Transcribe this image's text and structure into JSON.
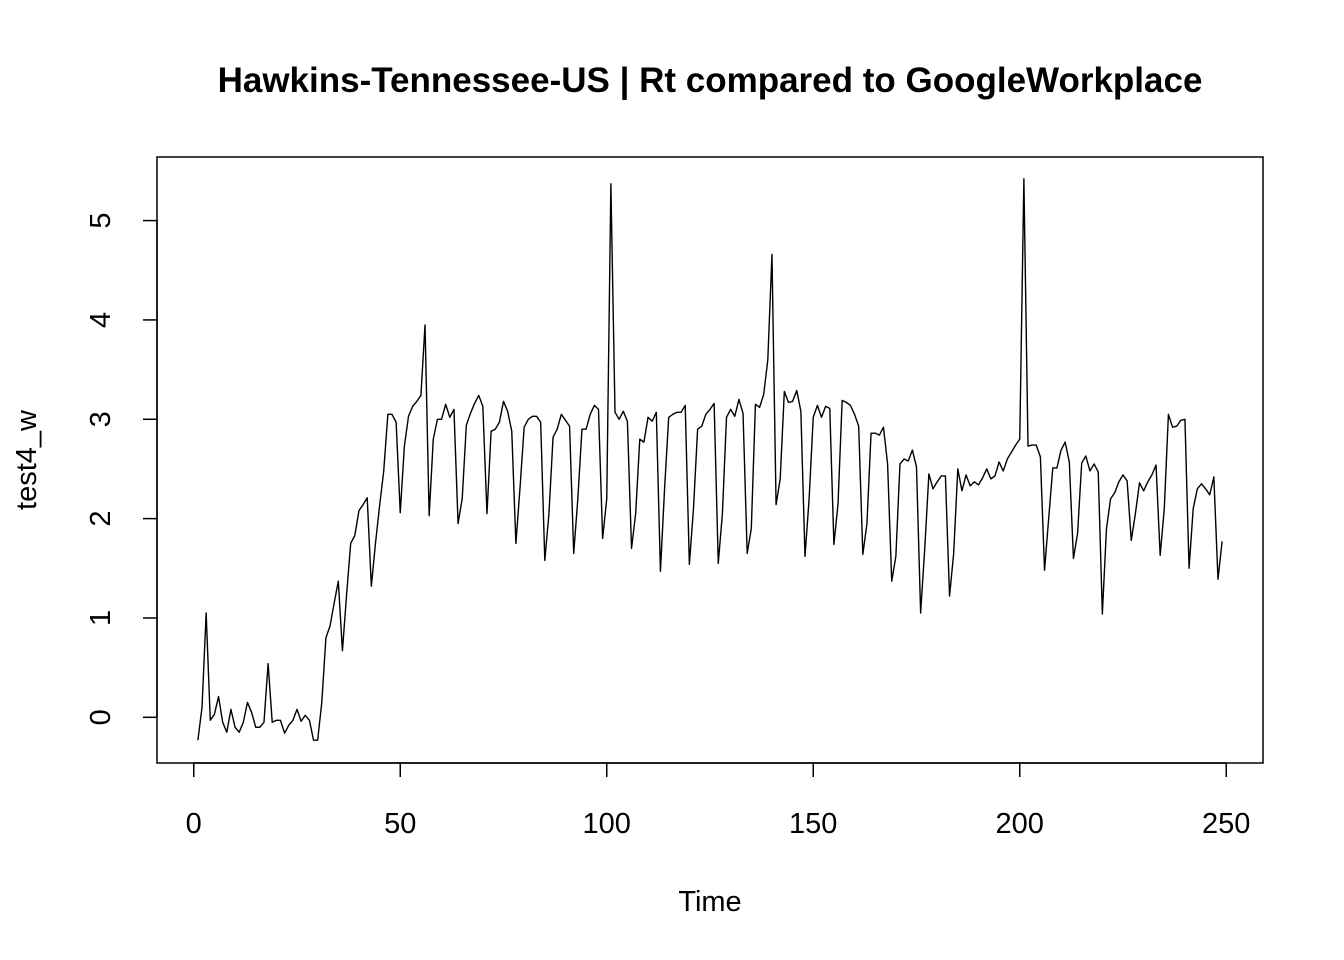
{
  "chart_data": {
    "type": "line",
    "title": "Hawkins-Tennessee-US | Rt compared to GoogleWorkplace",
    "xlabel": "Time",
    "ylabel": "test4_w",
    "xlim": [
      -8.9,
      258.9
    ],
    "ylim": [
      -0.46,
      5.64
    ],
    "x_ticks": [
      0,
      50,
      100,
      150,
      200,
      250
    ],
    "y_ticks": [
      0,
      1,
      2,
      3,
      4,
      5
    ],
    "line_color": "#000000",
    "x_start": 1,
    "series": [
      {
        "values": [
          -0.23,
          0.1,
          1.05,
          -0.03,
          0.03,
          0.21,
          -0.05,
          -0.15,
          0.08,
          -0.1,
          -0.15,
          -0.05,
          0.15,
          0.05,
          -0.1,
          -0.1,
          -0.05,
          0.54,
          -0.05,
          -0.03,
          -0.03,
          -0.16,
          -0.08,
          -0.03,
          0.08,
          -0.04,
          0.02,
          -0.03,
          -0.23,
          -0.23,
          0.15,
          0.8,
          0.92,
          1.15,
          1.37,
          0.67,
          1.23,
          1.75,
          1.83,
          2.08,
          2.14,
          2.21,
          1.32,
          1.75,
          2.13,
          2.48,
          3.05,
          3.05,
          2.97,
          2.06,
          2.73,
          3.03,
          3.13,
          3.18,
          3.24,
          3.95,
          2.03,
          2.8,
          3.0,
          3.0,
          3.15,
          3.02,
          3.1,
          1.95,
          2.2,
          2.94,
          3.06,
          3.16,
          3.24,
          3.13,
          2.05,
          2.88,
          2.9,
          2.97,
          3.18,
          3.08,
          2.88,
          1.75,
          2.31,
          2.92,
          3.0,
          3.03,
          3.03,
          2.97,
          1.58,
          2.05,
          2.82,
          2.9,
          3.05,
          2.99,
          2.93,
          1.65,
          2.2,
          2.9,
          2.9,
          3.05,
          3.14,
          3.1,
          1.8,
          2.2,
          5.37,
          3.07,
          3.0,
          3.08,
          2.98,
          1.7,
          2.05,
          2.8,
          2.77,
          3.02,
          2.98,
          3.07,
          1.47,
          2.3,
          3.02,
          3.05,
          3.07,
          3.07,
          3.14,
          1.54,
          2.1,
          2.9,
          2.93,
          3.05,
          3.1,
          3.16,
          1.55,
          2.05,
          3.02,
          3.1,
          3.03,
          3.2,
          3.06,
          1.65,
          1.9,
          3.15,
          3.12,
          3.25,
          3.6,
          4.66,
          2.14,
          2.4,
          3.28,
          3.17,
          3.18,
          3.29,
          3.08,
          1.62,
          2.2,
          3.02,
          3.14,
          3.02,
          3.13,
          3.11,
          1.74,
          2.15,
          3.19,
          3.17,
          3.14,
          3.05,
          2.93,
          1.64,
          1.95,
          2.86,
          2.86,
          2.84,
          2.92,
          2.55,
          1.37,
          1.62,
          2.55,
          2.6,
          2.58,
          2.69,
          2.52,
          1.05,
          1.7,
          2.45,
          2.3,
          2.37,
          2.43,
          2.43,
          1.22,
          1.65,
          2.5,
          2.28,
          2.44,
          2.33,
          2.37,
          2.34,
          2.41,
          2.5,
          2.4,
          2.43,
          2.57,
          2.48,
          2.6,
          2.67,
          2.74,
          2.8,
          5.42,
          2.73,
          2.74,
          2.74,
          2.62,
          1.48,
          2.0,
          2.51,
          2.51,
          2.69,
          2.77,
          2.57,
          1.6,
          1.85,
          2.56,
          2.63,
          2.48,
          2.55,
          2.47,
          1.04,
          1.9,
          2.2,
          2.26,
          2.37,
          2.44,
          2.38,
          1.78,
          2.05,
          2.36,
          2.28,
          2.37,
          2.44,
          2.54,
          1.63,
          2.1,
          3.05,
          2.92,
          2.93,
          2.99,
          3.0,
          1.5,
          2.1,
          2.3,
          2.35,
          2.3,
          2.24,
          2.42,
          1.39,
          1.77
        ]
      }
    ]
  }
}
